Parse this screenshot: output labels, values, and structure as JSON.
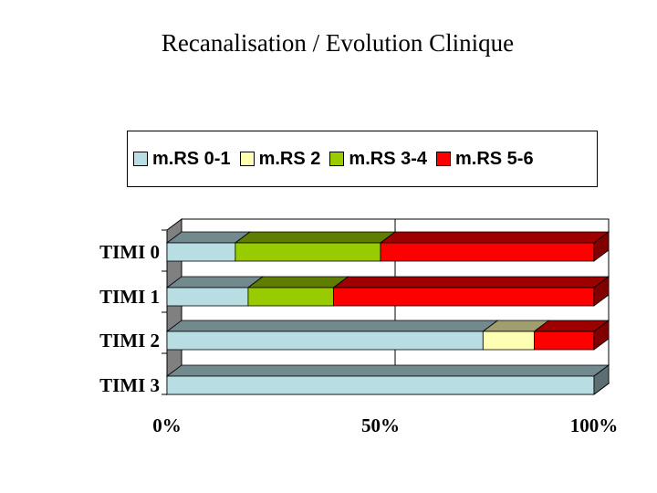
{
  "title": "Recanalisation / Evolution Clinique",
  "chart_data": {
    "type": "bar",
    "orientation": "horizontal",
    "stacked": "percent",
    "style": "3d",
    "categories": [
      "TIMI 0",
      "TIMI 1",
      "TIMI 2",
      "TIMI 3"
    ],
    "series": [
      {
        "name": "m.RS 0-1",
        "color": "#b8dde3",
        "values": [
          16,
          19,
          74,
          100
        ]
      },
      {
        "name": "m.RS 2",
        "color": "#ffffb3",
        "values": [
          0,
          0,
          12,
          0
        ]
      },
      {
        "name": "m.RS 3-4",
        "color": "#99cc00",
        "values": [
          34,
          20,
          0,
          0
        ]
      },
      {
        "name": "m.RS 5-6",
        "color": "#ff0000",
        "values": [
          50,
          61,
          14,
          0
        ]
      }
    ],
    "x_ticks": [
      "0%",
      "50%",
      "100%"
    ],
    "xlim": [
      0,
      100
    ],
    "legend_position": "top",
    "grid": true
  }
}
